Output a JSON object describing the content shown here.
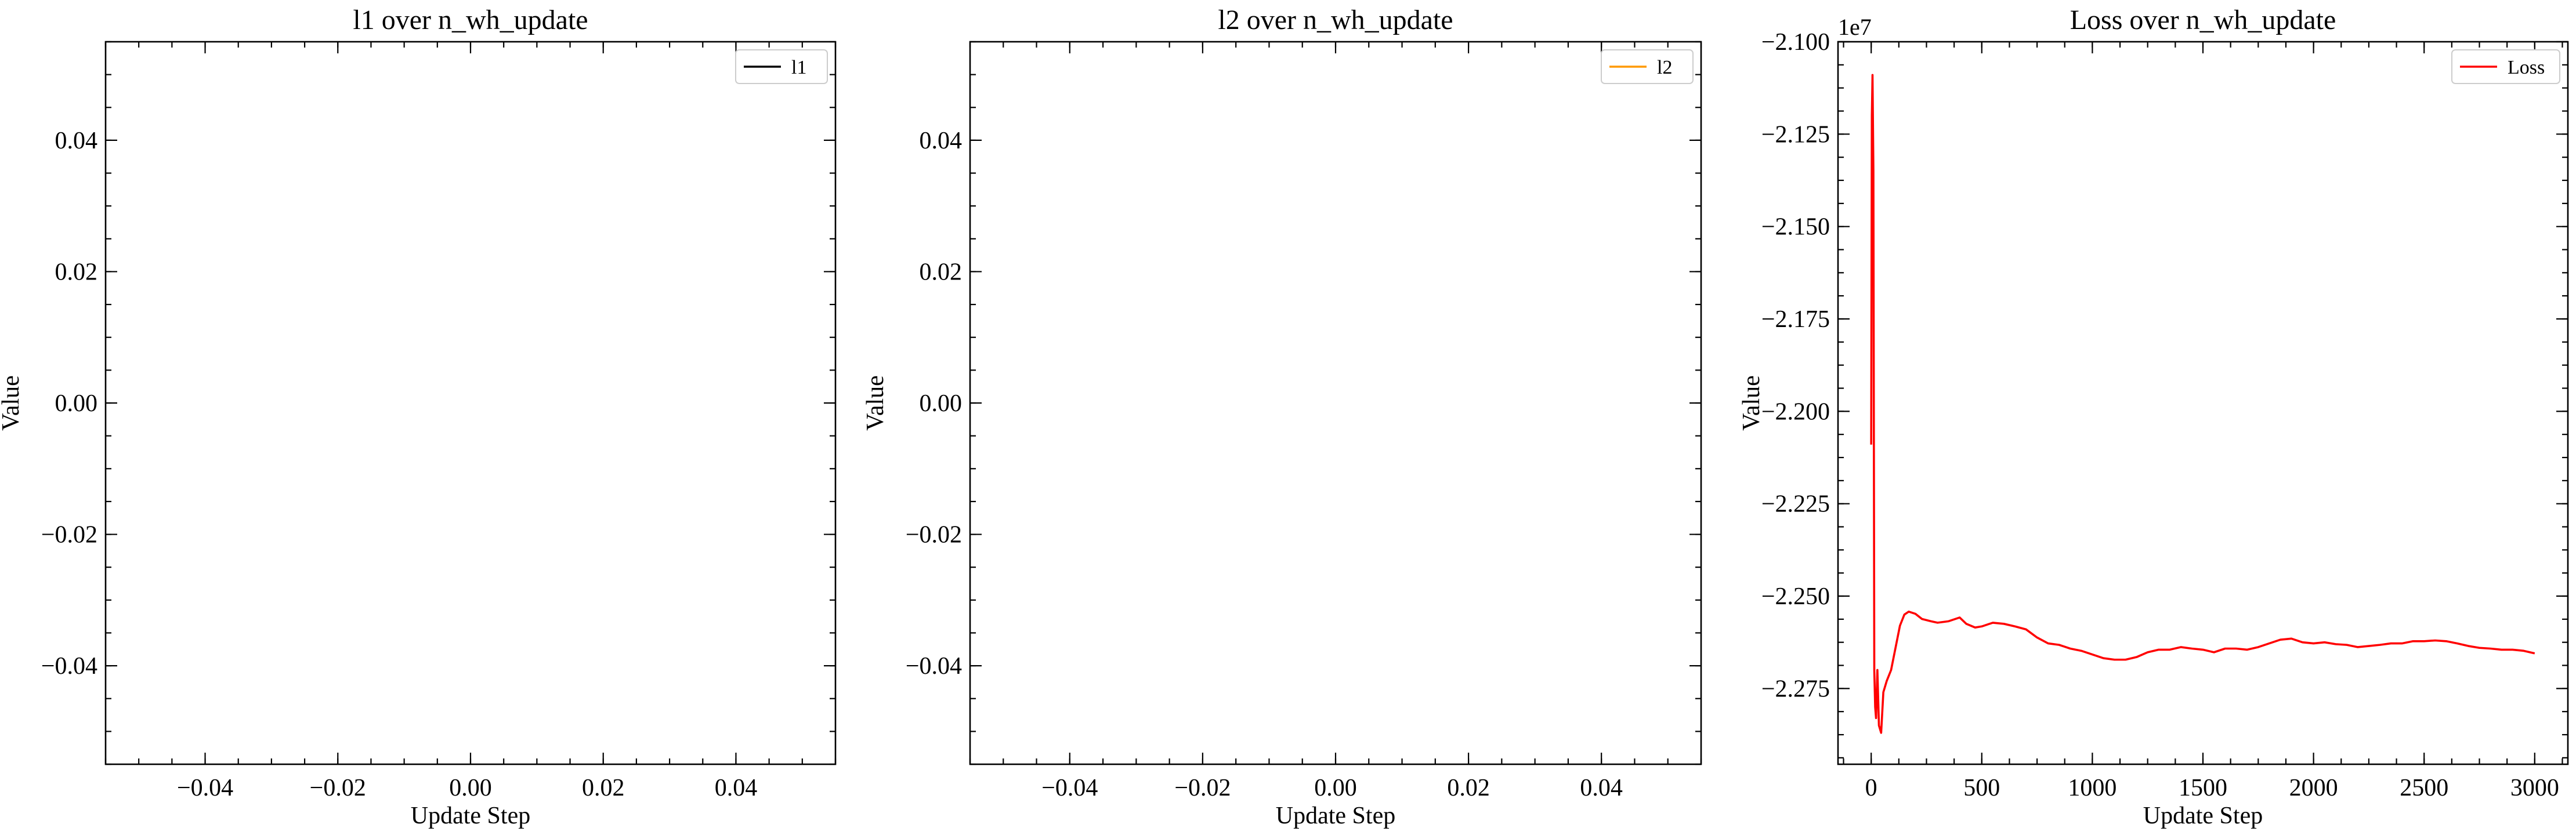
{
  "chart_data": [
    {
      "type": "line",
      "title": "l1 over n_wh_update",
      "xlabel": "Update Step",
      "ylabel": "Value",
      "xlim": [
        -0.055,
        0.055
      ],
      "ylim": [
        -0.055,
        0.055
      ],
      "x_ticks": [
        -0.04,
        -0.02,
        0.0,
        0.02,
        0.04
      ],
      "x_tick_labels": [
        "−0.04",
        "−0.02",
        "0.00",
        "0.02",
        "0.04"
      ],
      "y_ticks": [
        0.04,
        0.02,
        0.0,
        -0.02,
        -0.04
      ],
      "y_tick_labels": [
        "0.04",
        "0.02",
        "0.00",
        "−0.02",
        "−0.04"
      ],
      "legend_position": "top-right",
      "series": [
        {
          "name": "l1",
          "color": "#000000",
          "x": [],
          "y": []
        }
      ]
    },
    {
      "type": "line",
      "title": "l2 over n_wh_update",
      "xlabel": "Update Step",
      "ylabel": "Value",
      "xlim": [
        -0.055,
        0.055
      ],
      "ylim": [
        -0.055,
        0.055
      ],
      "x_ticks": [
        -0.04,
        -0.02,
        0.0,
        0.02,
        0.04
      ],
      "x_tick_labels": [
        "−0.04",
        "−0.02",
        "0.00",
        "0.02",
        "0.04"
      ],
      "y_ticks": [
        0.04,
        0.02,
        0.0,
        -0.02,
        -0.04
      ],
      "y_tick_labels": [
        "0.04",
        "0.02",
        "0.00",
        "−0.02",
        "−0.04"
      ],
      "legend_position": "top-right",
      "series": [
        {
          "name": "l2",
          "color": "#ff9900",
          "x": [],
          "y": []
        }
      ]
    },
    {
      "type": "line",
      "title": "Loss over n_wh_update",
      "xlabel": "Update Step",
      "ylabel": "Value",
      "y_offset_label": "1e7",
      "xlim": [
        -150,
        3150
      ],
      "ylim": [
        -2.2955,
        -2.1
      ],
      "x_ticks": [
        0,
        500,
        1000,
        1500,
        2000,
        2500,
        3000
      ],
      "x_tick_labels": [
        "0",
        "500",
        "1000",
        "1500",
        "2000",
        "2500",
        "3000"
      ],
      "y_ticks": [
        -2.1,
        -2.125,
        -2.15,
        -2.175,
        -2.2,
        -2.225,
        -2.25,
        -2.275
      ],
      "y_tick_labels": [
        "−2.100",
        "−2.125",
        "−2.150",
        "−2.175",
        "−2.200",
        "−2.225",
        "−2.250",
        "−2.275"
      ],
      "legend_position": "top-right",
      "series": [
        {
          "name": "Loss",
          "color": "#ff0000",
          "x": [
            0,
            3,
            6,
            10,
            14,
            18,
            22,
            28,
            35,
            45,
            55,
            70,
            90,
            110,
            130,
            150,
            170,
            200,
            230,
            270,
            300,
            350,
            400,
            430,
            470,
            500,
            550,
            600,
            650,
            700,
            750,
            800,
            850,
            900,
            950,
            1000,
            1050,
            1100,
            1150,
            1200,
            1250,
            1300,
            1350,
            1400,
            1450,
            1500,
            1550,
            1600,
            1650,
            1700,
            1750,
            1800,
            1850,
            1900,
            1950,
            2000,
            2050,
            2100,
            2150,
            2200,
            2250,
            2300,
            2350,
            2400,
            2450,
            2500,
            2550,
            2600,
            2650,
            2700,
            2750,
            2800,
            2850,
            2900,
            2950,
            3000
          ],
          "y": [
            -2.209,
            -2.12,
            -2.109,
            -2.135,
            -2.27,
            -2.28,
            -2.283,
            -2.27,
            -2.285,
            -2.287,
            -2.276,
            -2.273,
            -2.27,
            -2.264,
            -2.258,
            -2.255,
            -2.2542,
            -2.2548,
            -2.2562,
            -2.2568,
            -2.2572,
            -2.2568,
            -2.2558,
            -2.2575,
            -2.2585,
            -2.2582,
            -2.2572,
            -2.2575,
            -2.2582,
            -2.259,
            -2.2612,
            -2.2628,
            -2.2632,
            -2.2642,
            -2.2648,
            -2.2658,
            -2.2668,
            -2.2672,
            -2.2672,
            -2.2665,
            -2.2652,
            -2.2645,
            -2.2645,
            -2.2638,
            -2.2642,
            -2.2645,
            -2.2652,
            -2.2642,
            -2.2642,
            -2.2645,
            -2.2638,
            -2.2628,
            -2.2618,
            -2.2615,
            -2.2625,
            -2.2628,
            -2.2625,
            -2.263,
            -2.2632,
            -2.2638,
            -2.2635,
            -2.2632,
            -2.2628,
            -2.2628,
            -2.2622,
            -2.2622,
            -2.262,
            -2.2622,
            -2.2628,
            -2.2635,
            -2.264,
            -2.2642,
            -2.2645,
            -2.2645,
            -2.2648,
            -2.2655
          ]
        }
      ]
    }
  ]
}
